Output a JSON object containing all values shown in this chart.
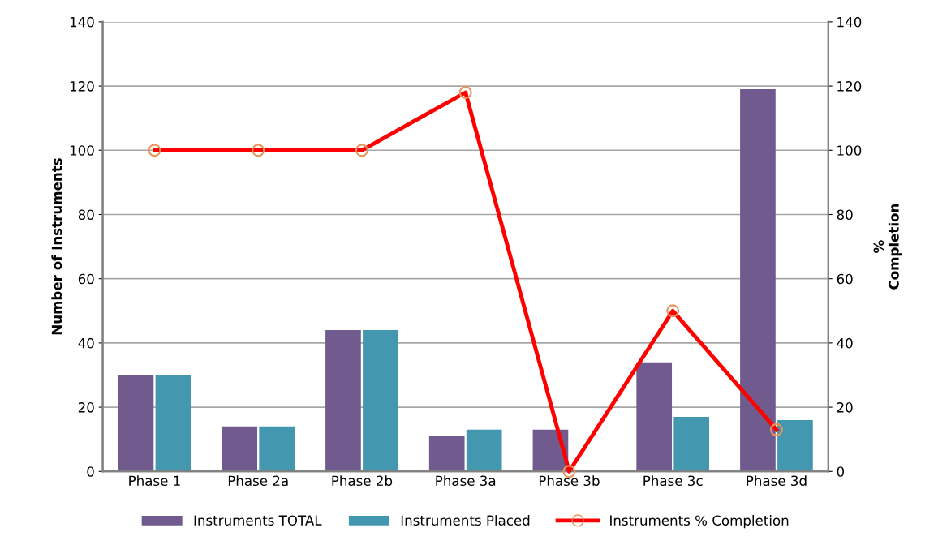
{
  "chart_data": {
    "type": "bar",
    "ylabel": "Number of Instruments",
    "y2label": "%\nCompletion",
    "categories": [
      "Phase 1",
      "Phase 2a",
      "Phase 2b",
      "Phase 3a",
      "Phase 3b",
      "Phase 3c",
      "Phase 3d"
    ],
    "series": [
      {
        "name": "Instruments TOTAL",
        "color": "#705a8e",
        "values": [
          30,
          14,
          44,
          11,
          13,
          34,
          119
        ]
      },
      {
        "name": "Instruments Placed",
        "color": "#4398b0",
        "values": [
          30,
          14,
          44,
          13,
          0,
          17,
          16
        ]
      },
      {
        "name": "Instruments % Completion",
        "type": "line",
        "axis": "y2",
        "color": "#ff0000",
        "marker": "circle",
        "values": [
          100,
          100,
          100,
          118,
          0,
          50,
          13
        ]
      }
    ],
    "ylim": [
      0,
      140
    ],
    "yticks": [
      0,
      20,
      40,
      60,
      80,
      100,
      120,
      140
    ],
    "y2lim": [
      0,
      140
    ],
    "y2ticks": [
      0,
      20,
      40,
      60,
      80,
      100,
      120,
      140
    ],
    "grid": "y",
    "legend": "bottom"
  }
}
